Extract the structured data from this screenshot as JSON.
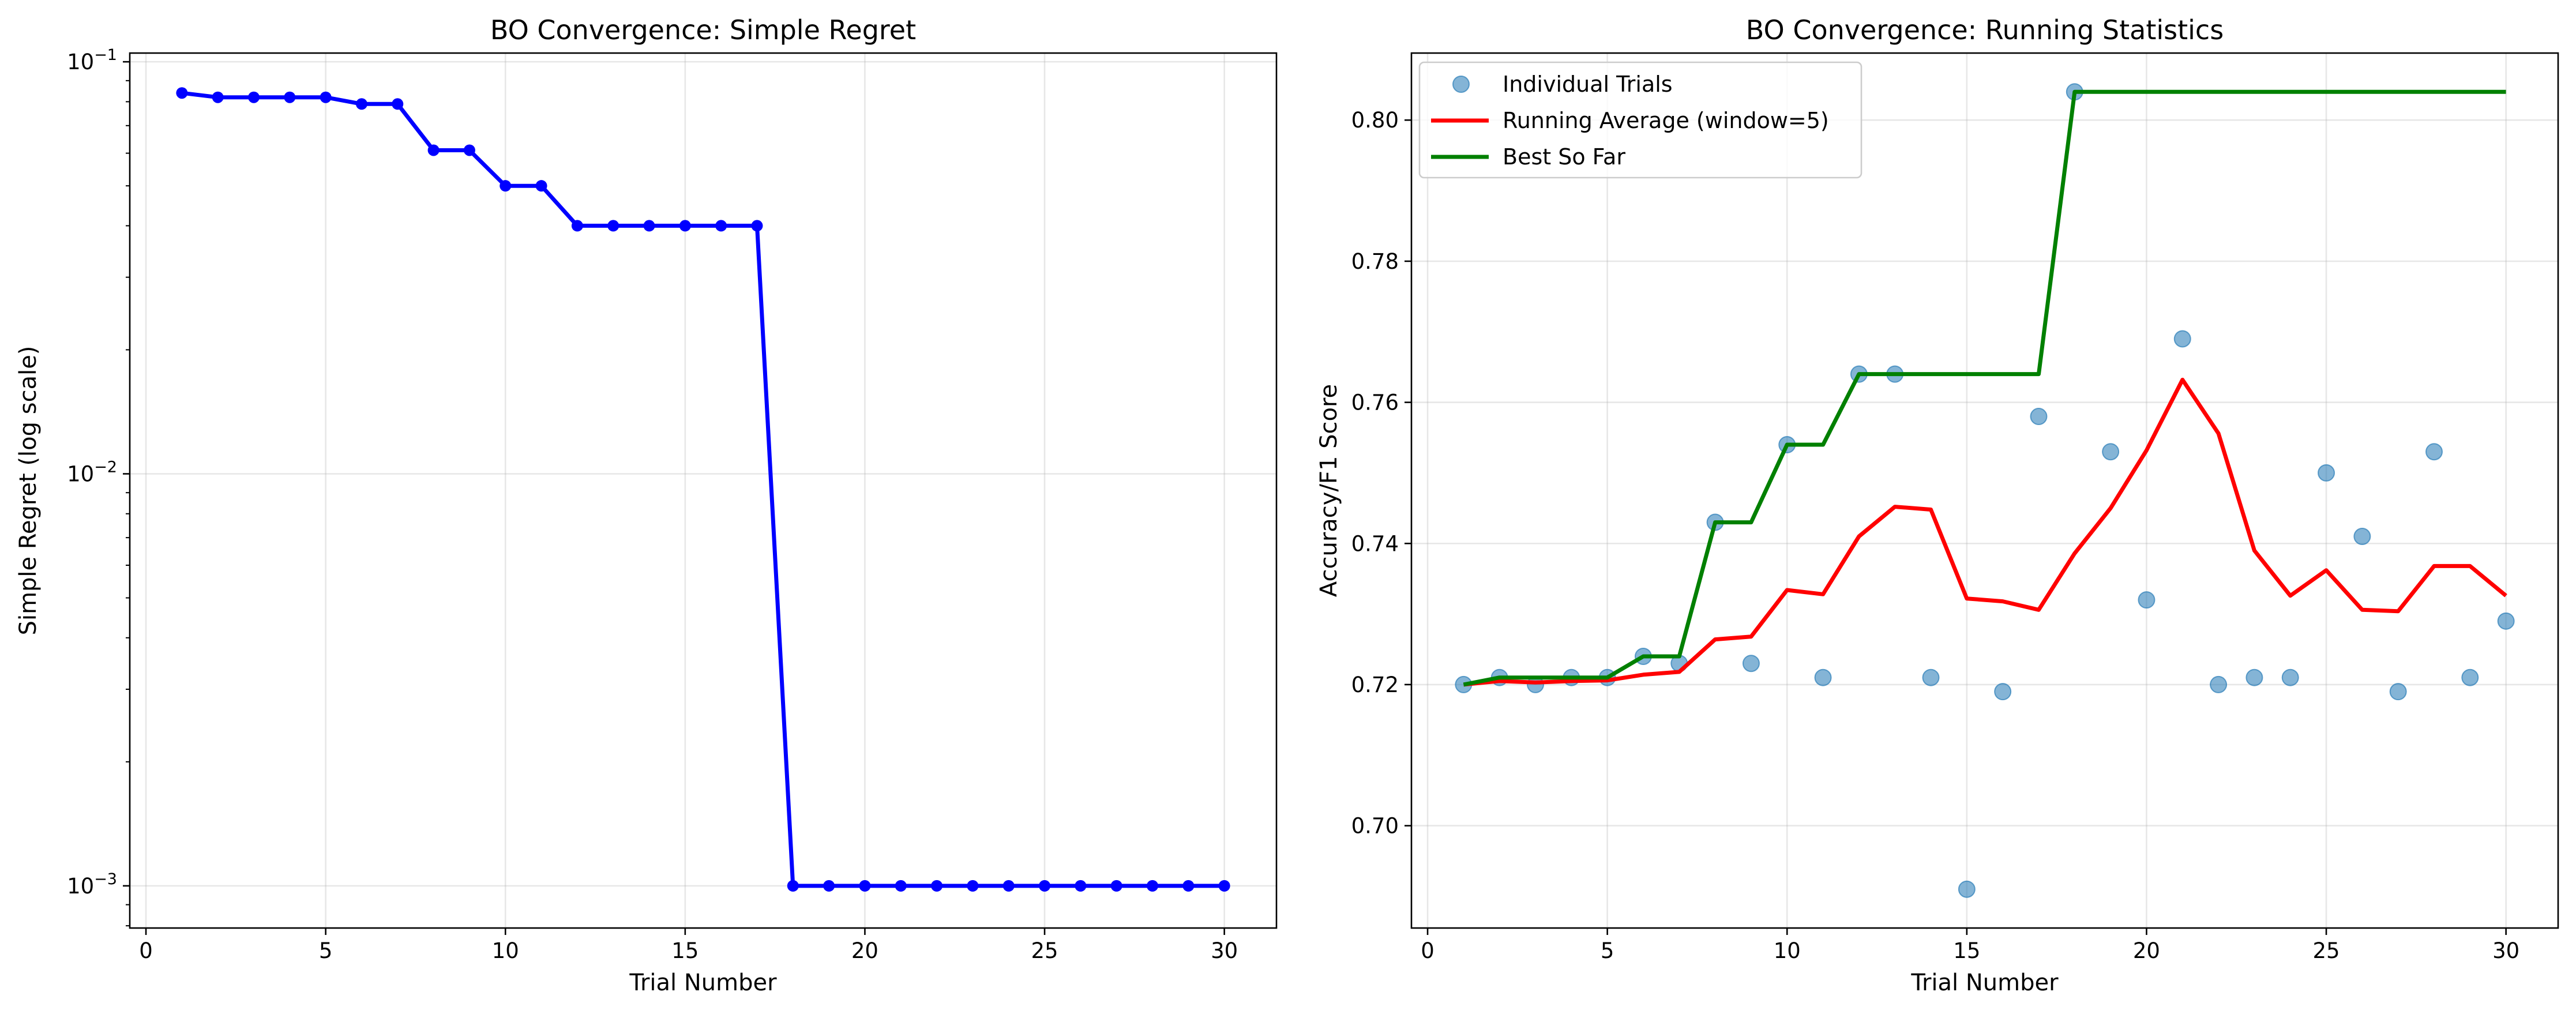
{
  "chart_data": [
    {
      "type": "line",
      "title": "BO Convergence: Simple Regret",
      "xlabel": "Trial Number",
      "ylabel": "Simple Regret (log scale)",
      "yscale": "log",
      "xlim": [
        -0.45,
        31.45
      ],
      "ylim": [
        0.00079,
        0.105
      ],
      "xticks": [
        0,
        5,
        10,
        15,
        20,
        25,
        30
      ],
      "xtick_labels": [
        "0",
        "5",
        "10",
        "15",
        "20",
        "25",
        "30"
      ],
      "yticks": [
        0.001,
        0.01,
        0.1
      ],
      "ytick_labels": [
        {
          "base": "10",
          "exp": "−3"
        },
        {
          "base": "10",
          "exp": "−2"
        },
        {
          "base": "10",
          "exp": "−1"
        }
      ],
      "grid": true,
      "series": [
        {
          "color": "#0000ff",
          "marker": "circle",
          "x": [
            1,
            2,
            3,
            4,
            5,
            6,
            7,
            8,
            9,
            10,
            11,
            12,
            13,
            14,
            15,
            16,
            17,
            18,
            19,
            20,
            21,
            22,
            23,
            24,
            25,
            26,
            27,
            28,
            29,
            30
          ],
          "y": [
            0.084,
            0.082,
            0.082,
            0.082,
            0.082,
            0.079,
            0.079,
            0.061,
            0.061,
            0.05,
            0.05,
            0.04,
            0.04,
            0.04,
            0.04,
            0.04,
            0.04,
            0.001,
            0.001,
            0.001,
            0.001,
            0.001,
            0.001,
            0.001,
            0.001,
            0.001,
            0.001,
            0.001,
            0.001,
            0.001
          ]
        }
      ]
    },
    {
      "type": "line",
      "title": "BO Convergence: Running Statistics",
      "xlabel": "Trial Number",
      "ylabel": "Accuracy/F1 Score",
      "xlim": [
        -0.45,
        31.45
      ],
      "ylim": [
        0.6855,
        0.8095
      ],
      "xticks": [
        0,
        5,
        10,
        15,
        20,
        25,
        30
      ],
      "xtick_labels": [
        "0",
        "5",
        "10",
        "15",
        "20",
        "25",
        "30"
      ],
      "yticks": [
        0.7,
        0.72,
        0.74,
        0.76,
        0.78,
        0.8
      ],
      "ytick_labels": [
        "0.70",
        "0.72",
        "0.74",
        "0.76",
        "0.78",
        "0.80"
      ],
      "grid": true,
      "legend_position": "upper-left",
      "series": [
        {
          "name": "Individual Trials",
          "kind": "scatter",
          "color": "#1f77b4",
          "x": [
            1,
            2,
            3,
            4,
            5,
            6,
            7,
            8,
            9,
            10,
            11,
            12,
            13,
            14,
            15,
            16,
            17,
            18,
            19,
            20,
            21,
            22,
            23,
            24,
            25,
            26,
            27,
            28,
            29,
            30
          ],
          "y": [
            0.72,
            0.721,
            0.72,
            0.721,
            0.721,
            0.724,
            0.723,
            0.743,
            0.723,
            0.754,
            0.721,
            0.764,
            0.764,
            0.721,
            0.691,
            0.719,
            0.758,
            0.804,
            0.753,
            0.732,
            0.769,
            0.72,
            0.721,
            0.721,
            0.75,
            0.741,
            0.719,
            0.753,
            0.721,
            0.729
          ]
        },
        {
          "name": "Running Average (window=5)",
          "kind": "line",
          "color": "#ff0000",
          "x": [
            1,
            2,
            3,
            4,
            5,
            6,
            7,
            8,
            9,
            10,
            11,
            12,
            13,
            14,
            15,
            16,
            17,
            18,
            19,
            20,
            21,
            22,
            23,
            24,
            25,
            26,
            27,
            28,
            29,
            30
          ],
          "y": [
            0.72,
            0.7205,
            0.7203,
            0.7205,
            0.7206,
            0.7214,
            0.7218,
            0.7264,
            0.7268,
            0.7334,
            0.7328,
            0.741,
            0.7452,
            0.7448,
            0.7322,
            0.7318,
            0.7306,
            0.7386,
            0.745,
            0.7532,
            0.7632,
            0.7556,
            0.739,
            0.7326,
            0.7362,
            0.7306,
            0.7304,
            0.7368,
            0.7368,
            0.7326
          ]
        },
        {
          "name": "Best So Far",
          "kind": "line",
          "color": "#008000",
          "x": [
            1,
            2,
            3,
            4,
            5,
            6,
            7,
            8,
            9,
            10,
            11,
            12,
            13,
            14,
            15,
            16,
            17,
            18,
            19,
            20,
            21,
            22,
            23,
            24,
            25,
            26,
            27,
            28,
            29,
            30
          ],
          "y": [
            0.72,
            0.721,
            0.721,
            0.721,
            0.721,
            0.724,
            0.724,
            0.743,
            0.743,
            0.754,
            0.754,
            0.764,
            0.764,
            0.764,
            0.764,
            0.764,
            0.764,
            0.804,
            0.804,
            0.804,
            0.804,
            0.804,
            0.804,
            0.804,
            0.804,
            0.804,
            0.804,
            0.804,
            0.804,
            0.804
          ]
        }
      ]
    }
  ]
}
